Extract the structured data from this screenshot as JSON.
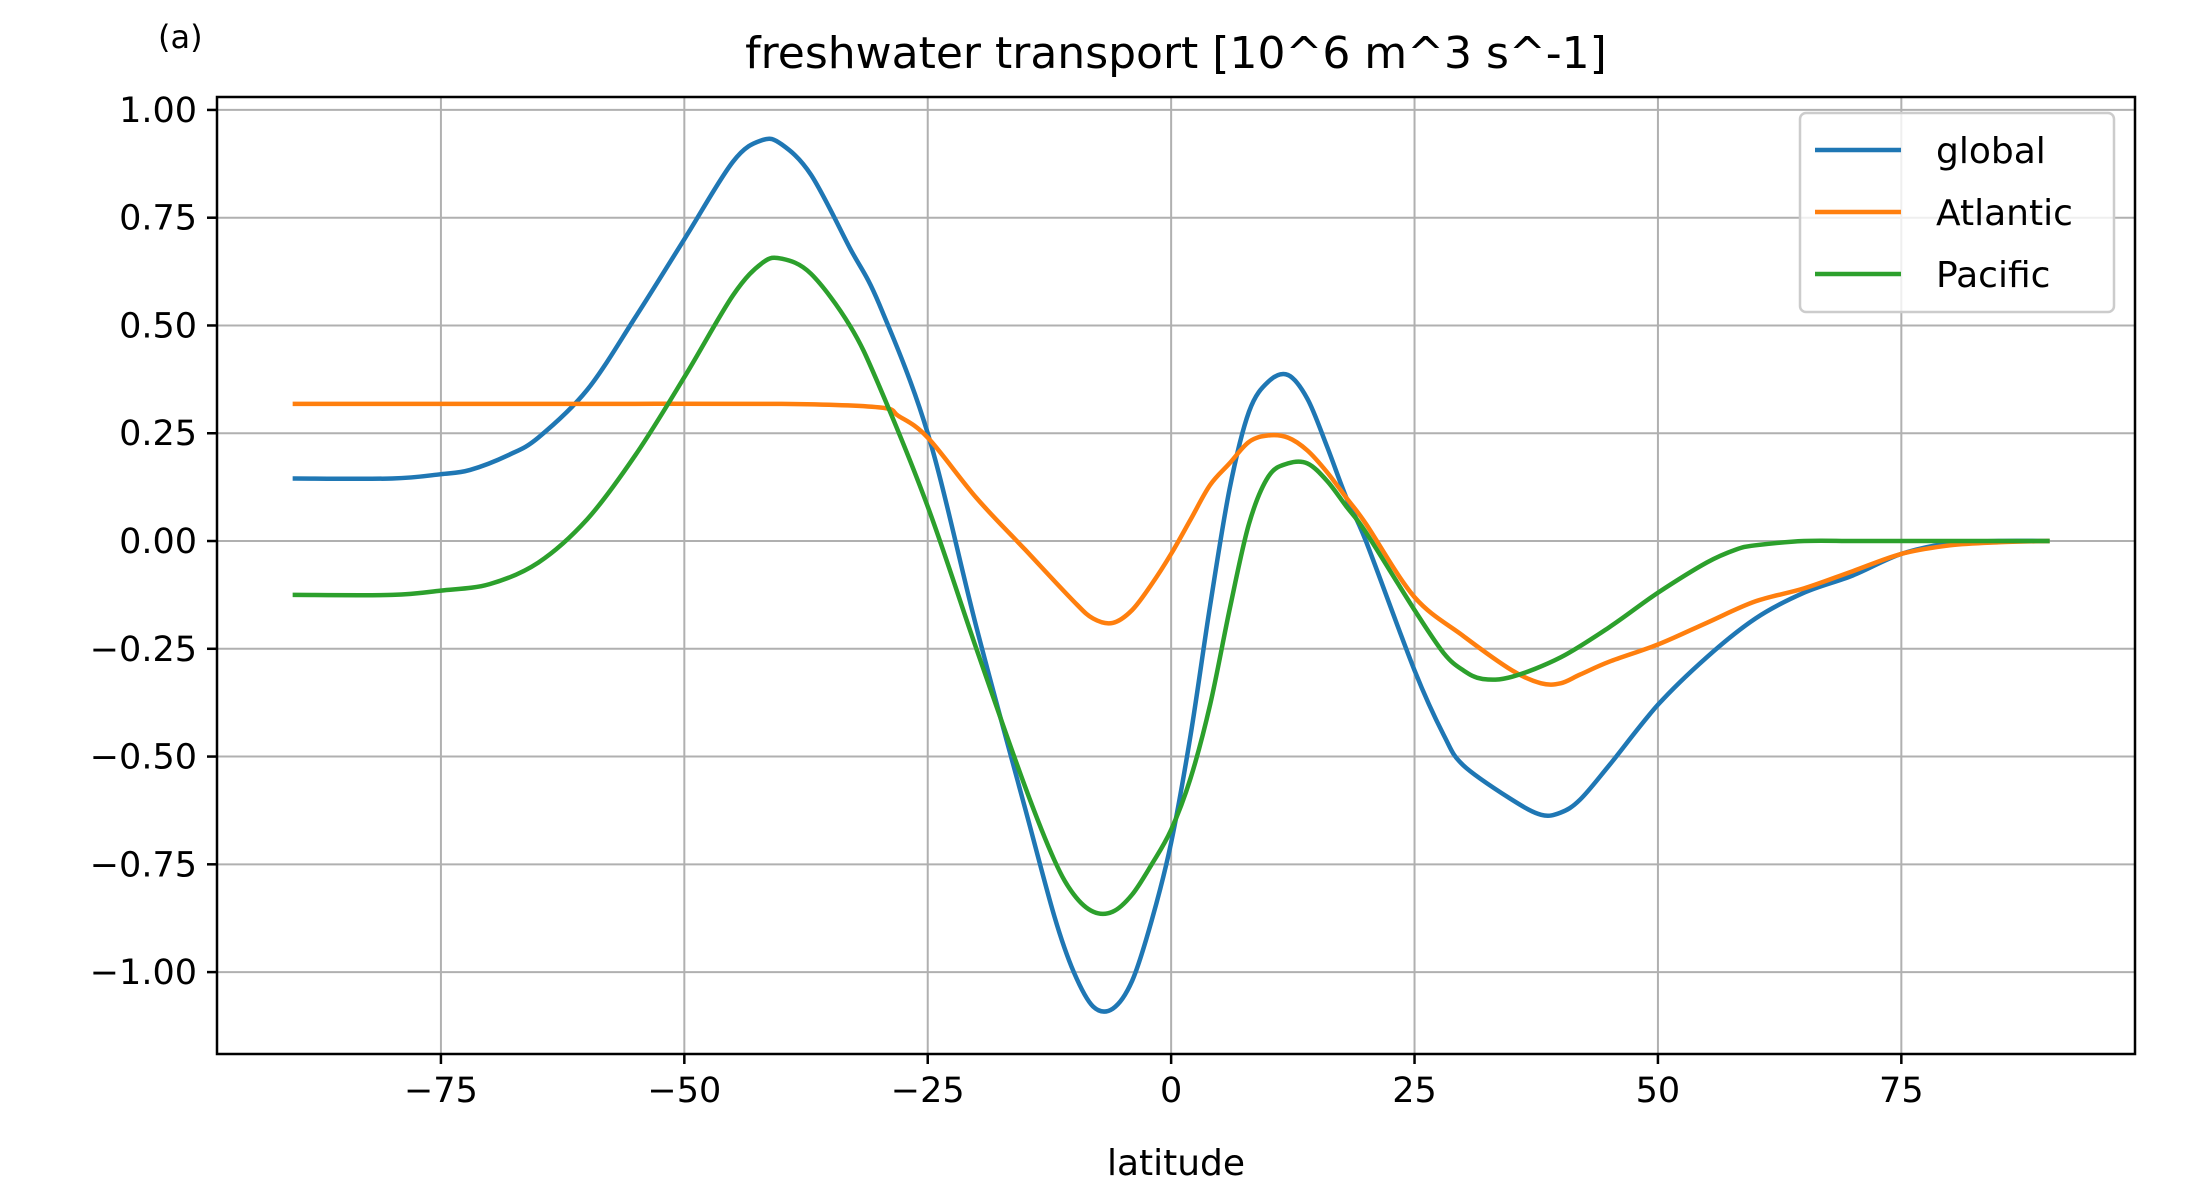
{
  "chart_data": {
    "type": "line",
    "panel_label": "(a)",
    "title": "freshwater transport [10^6 m^3 s^-1]",
    "xlabel": "latitude",
    "ylabel": "",
    "xlim": [
      -98,
      99
    ],
    "ylim": [
      -1.19,
      1.03
    ],
    "xticks": [
      -75,
      -50,
      -25,
      0,
      25,
      50,
      75
    ],
    "xtick_labels": [
      "−75",
      "−50",
      "−25",
      "0",
      "25",
      "50",
      "75"
    ],
    "yticks": [
      1.0,
      0.75,
      0.5,
      0.25,
      0.0,
      -0.25,
      -0.5,
      -0.75,
      -1.0
    ],
    "ytick_labels": [
      "1.00",
      "0.75",
      "0.50",
      "0.25",
      "0.00",
      "−0.25",
      "−0.50",
      "−0.75",
      "−1.00"
    ],
    "grid": true,
    "legend_position": "top-right",
    "series": [
      {
        "name": "global",
        "color": "#1f77b4",
        "x": [
          -90,
          -80,
          -75,
          -72,
          -68,
          -65,
          -60,
          -55,
          -50,
          -45,
          -42,
          -40,
          -37,
          -33,
          -30,
          -25,
          -20,
          -15,
          -12,
          -10,
          -8,
          -6,
          -4,
          -2,
          0,
          2,
          4,
          6,
          8,
          10,
          12,
          14,
          16,
          18,
          20,
          25,
          28,
          30,
          35,
          38,
          40,
          42,
          45,
          50,
          55,
          60,
          65,
          70,
          75,
          80,
          85,
          90
        ],
        "y": [
          0.145,
          0.145,
          0.155,
          0.165,
          0.2,
          0.24,
          0.35,
          0.52,
          0.7,
          0.88,
          0.93,
          0.92,
          0.85,
          0.68,
          0.55,
          0.25,
          -0.2,
          -0.62,
          -0.87,
          -1.0,
          -1.08,
          -1.085,
          -1.02,
          -0.88,
          -0.7,
          -0.45,
          -0.15,
          0.12,
          0.3,
          0.37,
          0.385,
          0.33,
          0.22,
          0.1,
          0.0,
          -0.3,
          -0.45,
          -0.52,
          -0.6,
          -0.635,
          -0.63,
          -0.6,
          -0.52,
          -0.38,
          -0.27,
          -0.18,
          -0.12,
          -0.08,
          -0.03,
          -0.005,
          0.0,
          0.0
        ]
      },
      {
        "name": "Atlantic",
        "color": "#ff7f0e",
        "x": [
          -90,
          -80,
          -60,
          -40,
          -30,
          -28,
          -25,
          -20,
          -15,
          -10,
          -8,
          -6,
          -4,
          -2,
          0,
          2,
          4,
          6,
          8,
          10,
          12,
          14,
          16,
          18,
          20,
          25,
          30,
          35,
          38,
          40,
          42,
          45,
          50,
          55,
          60,
          65,
          70,
          75,
          80,
          85,
          90
        ],
        "y": [
          0.318,
          0.318,
          0.318,
          0.318,
          0.31,
          0.29,
          0.24,
          0.1,
          -0.02,
          -0.14,
          -0.18,
          -0.19,
          -0.16,
          -0.1,
          -0.03,
          0.05,
          0.13,
          0.18,
          0.23,
          0.245,
          0.24,
          0.21,
          0.16,
          0.1,
          0.04,
          -0.13,
          -0.22,
          -0.3,
          -0.33,
          -0.33,
          -0.31,
          -0.28,
          -0.24,
          -0.19,
          -0.14,
          -0.11,
          -0.07,
          -0.03,
          -0.01,
          -0.003,
          0.0
        ]
      },
      {
        "name": "Pacific",
        "color": "#2ca02c",
        "x": [
          -90,
          -80,
          -75,
          -70,
          -65,
          -60,
          -55,
          -50,
          -45,
          -42,
          -40,
          -37,
          -33,
          -30,
          -25,
          -20,
          -15,
          -12,
          -10,
          -8,
          -6,
          -4,
          -2,
          0,
          2,
          4,
          6,
          8,
          10,
          12,
          14,
          16,
          18,
          20,
          25,
          28,
          30,
          32,
          35,
          40,
          45,
          50,
          55,
          58,
          60,
          65,
          70,
          75,
          80,
          85,
          90
        ],
        "y": [
          -0.125,
          -0.125,
          -0.115,
          -0.1,
          -0.05,
          0.05,
          0.2,
          0.38,
          0.57,
          0.645,
          0.655,
          0.62,
          0.5,
          0.36,
          0.08,
          -0.25,
          -0.57,
          -0.74,
          -0.82,
          -0.86,
          -0.86,
          -0.82,
          -0.75,
          -0.67,
          -0.55,
          -0.38,
          -0.16,
          0.04,
          0.15,
          0.18,
          0.18,
          0.14,
          0.08,
          0.02,
          -0.16,
          -0.26,
          -0.3,
          -0.32,
          -0.315,
          -0.27,
          -0.2,
          -0.12,
          -0.05,
          -0.02,
          -0.01,
          0.0,
          0.0,
          0.0,
          0.0,
          0.0,
          0.0
        ]
      }
    ]
  }
}
